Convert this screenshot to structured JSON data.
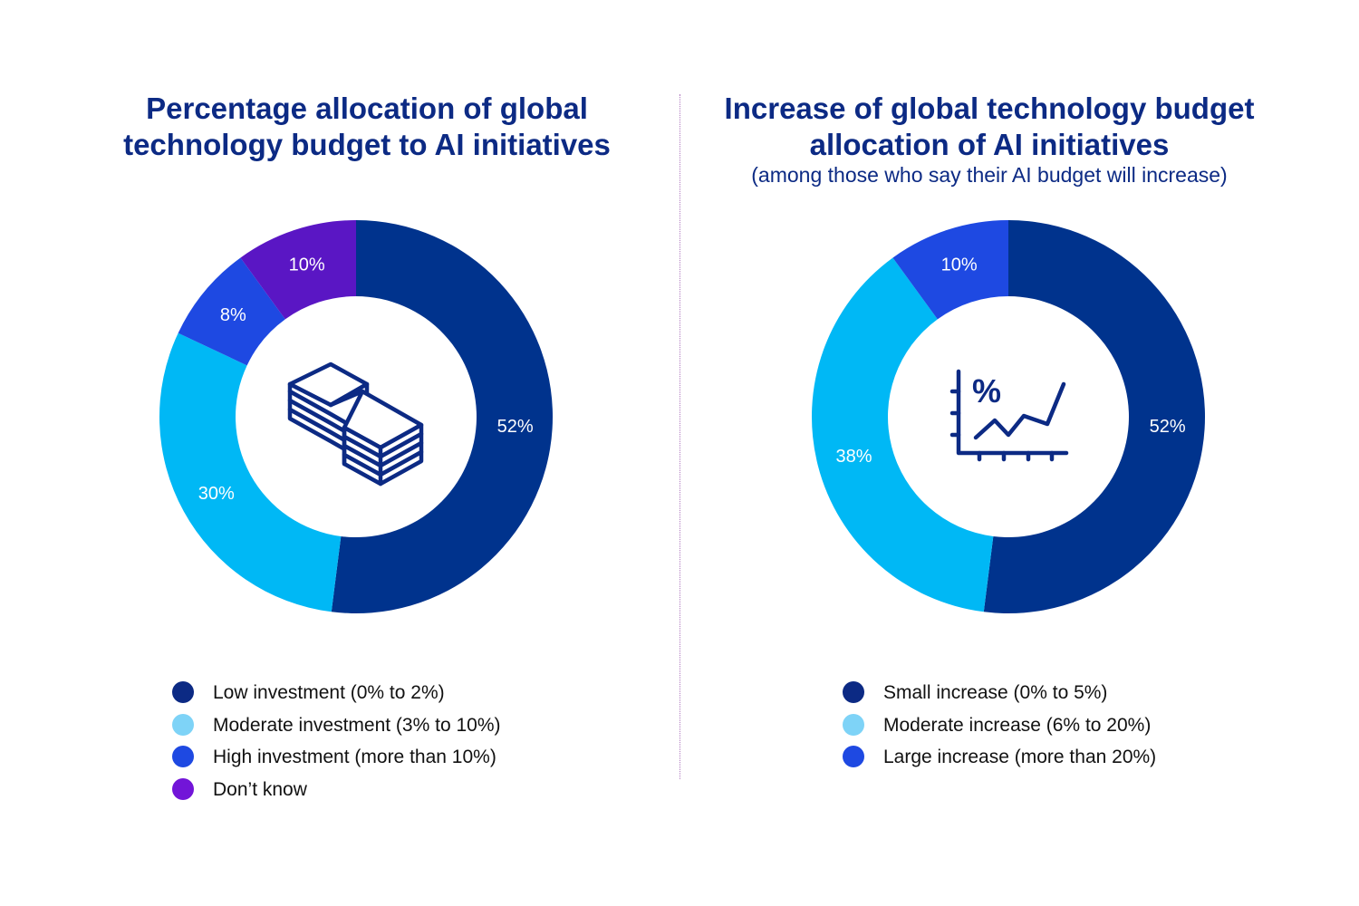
{
  "colors": {
    "title": "#0c2a84",
    "pct_label": "#ffffff",
    "icon": "#0c2a84"
  },
  "charts": [
    {
      "title_lines": [
        "Percentage allocation of global",
        "technology budget to AI initiatives"
      ],
      "subtitle": "",
      "icon": "stack-of-cash-icon",
      "legend_colors": [
        "#0c2a84",
        "#7ed3f7",
        "#1e49e2",
        "#7215d8"
      ]
    },
    {
      "title_lines": [
        "Increase of global technology budget",
        "allocation of AI initiatives"
      ],
      "subtitle": "(among those who say their AI budget will increase)",
      "icon": "percentage-growth-chart-icon",
      "legend_colors": [
        "#0c2a84",
        "#7ed3f7",
        "#1e49e2"
      ]
    }
  ],
  "chart_data": [
    {
      "type": "pie",
      "variant": "donut",
      "title": "Percentage allocation of global technology budget to AI initiatives",
      "categories": [
        "Low investment (0% to 2%)",
        "Moderate investment (3% to 10%)",
        "High investment (more than 10%)",
        "Don’t know"
      ],
      "values": [
        52,
        30,
        8,
        10
      ],
      "labels": [
        "52%",
        "30%",
        "8%",
        "10%"
      ],
      "colors": [
        "#00338d",
        "#00b8f5",
        "#1e49e2",
        "#5a16c4"
      ],
      "legend_position": "bottom"
    },
    {
      "type": "pie",
      "variant": "donut",
      "title": "Increase of global technology budget allocation of AI initiatives",
      "subtitle": "(among those who say their AI budget will increase)",
      "categories": [
        "Small increase (0% to 5%)",
        "Moderate increase (6% to 20%)",
        "Large increase (more than 20%)"
      ],
      "values": [
        52,
        38,
        10
      ],
      "labels": [
        "52%",
        "38%",
        "10%"
      ],
      "colors": [
        "#00338d",
        "#00b8f5",
        "#1e49e2"
      ],
      "legend_position": "bottom"
    }
  ]
}
